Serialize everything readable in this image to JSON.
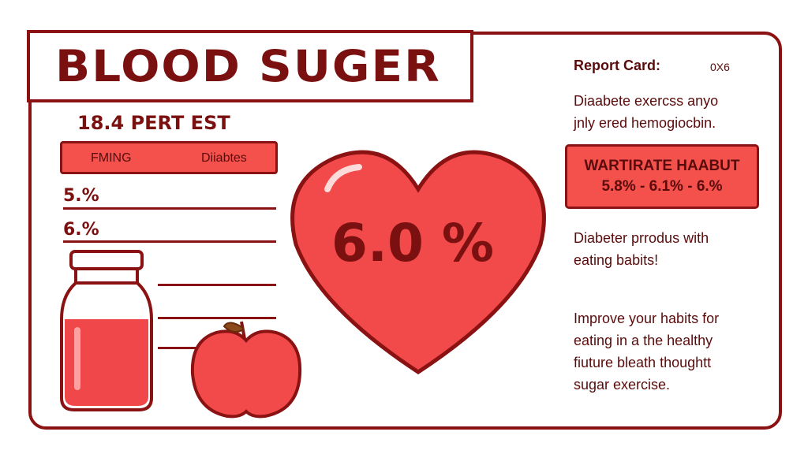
{
  "header": {
    "title": "BLOOD SUGER",
    "subtitle": "18.4 PERT EST"
  },
  "legend": {
    "left": "FMING",
    "right": "Diiabtes"
  },
  "rows": [
    "5.%",
    "6.%"
  ],
  "heart": {
    "value": "6.0 %"
  },
  "report": {
    "label": "Report Card:",
    "code": "0X6",
    "desc_line1": "Diaabete  exercss  anyo",
    "desc_line2": "jnlу ered hemogiocbin."
  },
  "warning": {
    "title": "WARTIRATE HAABUT",
    "values": "5.8% - 6.1% - 6.%"
  },
  "note1": {
    "line1": "Diabeter prrodus with",
    "line2": "eating babits!"
  },
  "note2": {
    "line1": "Improve your habits for",
    "line2": "eating in a the healthy",
    "line3": "fiuture bleath thoughtt",
    "line4": "sugar exercise."
  },
  "colors": {
    "outline": "#8a1212",
    "accent": "#f4504c",
    "heart": "#f24a4a"
  }
}
